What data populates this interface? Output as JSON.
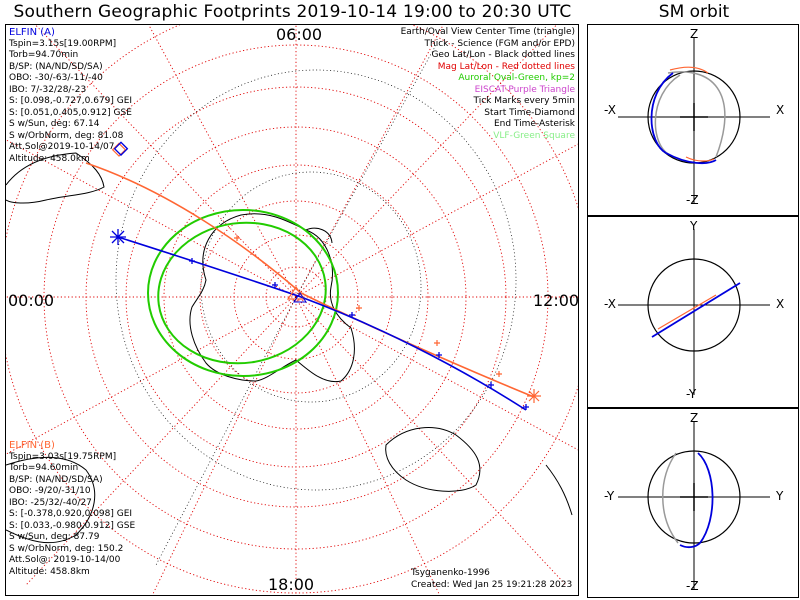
{
  "title": "Southern Geographic Footprints 2019-10-14 19:00 to 20:30 UTC",
  "sm_title": "SM orbit",
  "hours": {
    "top": "06:00",
    "left": "00:00",
    "right": "12:00",
    "bottom": "18:00"
  },
  "elfin_a": {
    "name": "ELFIN (A)",
    "lines": [
      "Tspin=3.15s[19.00RPM]",
      "Torb=94.70min",
      "B/SP: (NA/ND/SD/SA)",
      "OBO: -30/-63/-11/-40",
      "IBO: 7/-32/28/-23",
      "S: [0.098,-0.727,0.679] GEI",
      "S: [0.051,0.405,0.912] GSE",
      "S w/Sun, deg: 67.14",
      "S w/OrbNorm, deg: 81.08",
      "Att.Sol@2019-10-14/07",
      "Altitude: 458.0km"
    ]
  },
  "elfin_b": {
    "name": "ELFIN (B)",
    "lines": [
      "Tspin=3.03s[19.75RPM]",
      "Torb=94.60min",
      "B/SP: (NA/ND/SD/SA)",
      "OBO: -9/20/-31/10",
      "IBO: -25/32/-40/27",
      "S: [-0.378,0.920,0.098] GEI",
      "S: [0.033,-0.980,0.912] GSE",
      "S w/Sun, deg: 87.79",
      "S w/OrbNorm, deg: 150.2",
      "Att.Sol@: 2019-10-14/00",
      "Altitude: 458.8km"
    ]
  },
  "legend": [
    {
      "text": "Earth/Oval View Center Time (triangle)",
      "color": "#000000"
    },
    {
      "text": "Thick - Science (FGM and/or EPD)",
      "color": "#000000"
    },
    {
      "text": "Geo Lat/Lon - Black dotted lines",
      "color": "#000000"
    },
    {
      "text": "Mag Lat/Lon - Red dotted lines",
      "color": "#e00000"
    },
    {
      "text": "Auroral Oval-Green, kp=2",
      "color": "#22cc00"
    },
    {
      "text": "EISCAT-Purple Triangle",
      "color": "#cc44cc"
    },
    {
      "text": "Tick Marks every 5min",
      "color": "#000000"
    },
    {
      "text": "Start Time-Diamond",
      "color": "#000000"
    },
    {
      "text": "End Time-Asterisk",
      "color": "#000000"
    },
    {
      "text": "VLF-Green Square",
      "color": "#88ee88"
    }
  ],
  "credit": {
    "model": "Tsyganenko-1996",
    "created": "Created: Wed Jan 25 19:21:28 2023"
  },
  "orbit_panels": [
    {
      "name": "xz",
      "top": "Z",
      "bottom": "-Z",
      "left": "-X",
      "right": "X"
    },
    {
      "name": "xy",
      "top": "Y",
      "bottom": "-Y",
      "left": "-X",
      "right": "X"
    },
    {
      "name": "yz",
      "top": "Z",
      "bottom": "-Z",
      "left": "-Y",
      "right": "Y"
    }
  ],
  "colors": {
    "elfin_a": "#0000dd",
    "elfin_b": "#ff6633",
    "oval": "#22cc00",
    "mag_grid": "#e00000"
  }
}
